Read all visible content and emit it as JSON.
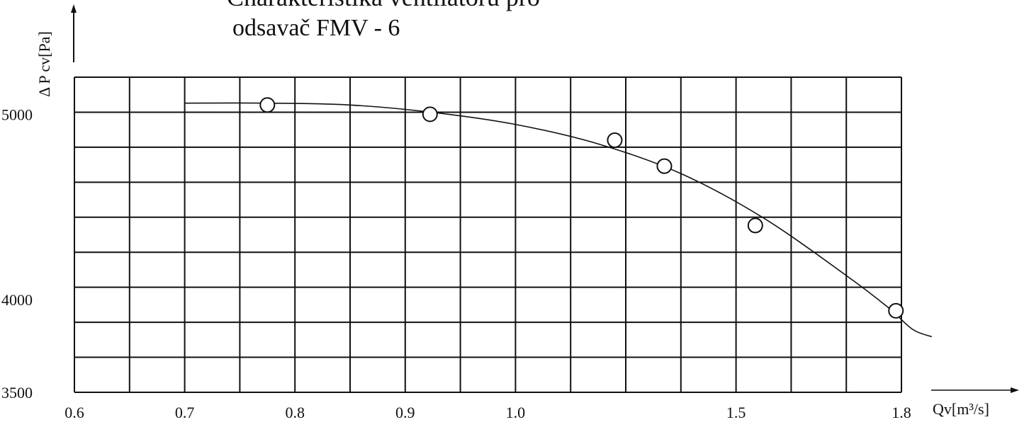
{
  "chart_data": {
    "type": "scatter",
    "title_lines": [
      "Charakteristika ventilatoru pro",
      "odsavač FMV - 6"
    ],
    "xlabel": "Qv[m³/s]",
    "ylabel": "Δ  P cv[Pa]",
    "x_ticks": [
      "0.6",
      "0.7",
      "0.8",
      "0.9",
      "1.0",
      "1.5",
      "1.8"
    ],
    "y_ticks": [
      "5000",
      "4000",
      "3500"
    ],
    "ylim": [
      3500,
      5200
    ],
    "grid": true,
    "x_grid_count": 15,
    "y_grid_count": 9,
    "series": [
      {
        "values_x_grid_index": [
          3.5,
          6.45,
          9.8,
          10.7,
          12.35,
          14.9
        ],
        "values_y": [
          5050,
          5000,
          4860,
          4720,
          4400,
          3940
        ]
      },
      {
        "type": "line",
        "curve_x_grid_index": [
          2.0,
          3.5,
          5.0,
          6.5,
          8.0,
          9.5,
          11.0,
          12.5,
          14.0,
          14.75,
          15.2,
          15.55
        ],
        "curve_y": [
          5060,
          5060,
          5050,
          5010,
          4945,
          4840,
          4680,
          4440,
          4130,
          3960,
          3840,
          3800
        ]
      }
    ]
  }
}
